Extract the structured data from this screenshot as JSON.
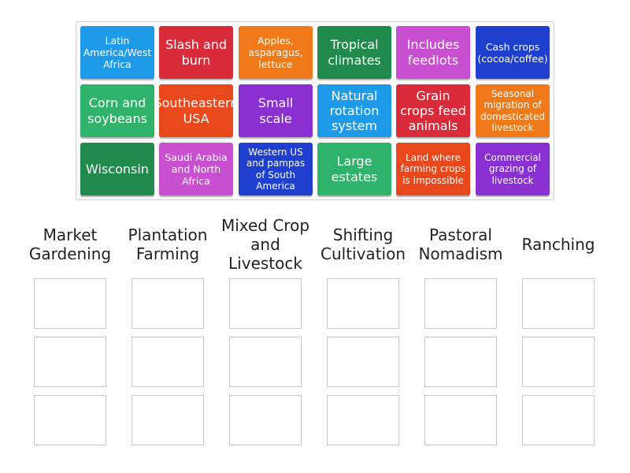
{
  "cards": [
    {
      "label": "Latin America/West Africa",
      "color": "#1e9be8"
    },
    {
      "label": "Slash and burn",
      "color": "#d92b3a"
    },
    {
      "label": "Apples, asparagus, lettuce",
      "color": "#f07a1a"
    },
    {
      "label": "Tropical climates",
      "color": "#1f8a4c"
    },
    {
      "label": "Includes feedlots",
      "color": "#c94fd1"
    },
    {
      "label": "Cash crops (cocoa/coffee)",
      "color": "#1f3fcf"
    },
    {
      "label": "Corn and soybeans",
      "color": "#2fb36a"
    },
    {
      "label": "Southeastern USA",
      "color": "#e8481c"
    },
    {
      "label": "Small scale",
      "color": "#8a2fd1"
    },
    {
      "label": "Natural rotation system",
      "color": "#1e9be8"
    },
    {
      "label": "Grain crops feed animals",
      "color": "#d92b3a"
    },
    {
      "label": "Seasonal migration of domesticated livestock",
      "color": "#f07a1a"
    },
    {
      "label": "Wisconsin",
      "color": "#1f8a4c"
    },
    {
      "label": "Saudi Arabia and North Africa",
      "color": "#c94fd1"
    },
    {
      "label": "Western US and pampas of South America",
      "color": "#1f3fcf"
    },
    {
      "label": "Large estates",
      "color": "#2fb36a"
    },
    {
      "label": "Land where farming crops is impossible",
      "color": "#e8481c"
    },
    {
      "label": "Commercial grazing of livestock",
      "color": "#8a2fd1"
    }
  ],
  "categories": [
    "Market Gardening",
    "Plantation Farming",
    "Mixed Crop and Livestock",
    "Shifting Cultivation",
    "Pastoral Nomadism",
    "Ranching"
  ]
}
